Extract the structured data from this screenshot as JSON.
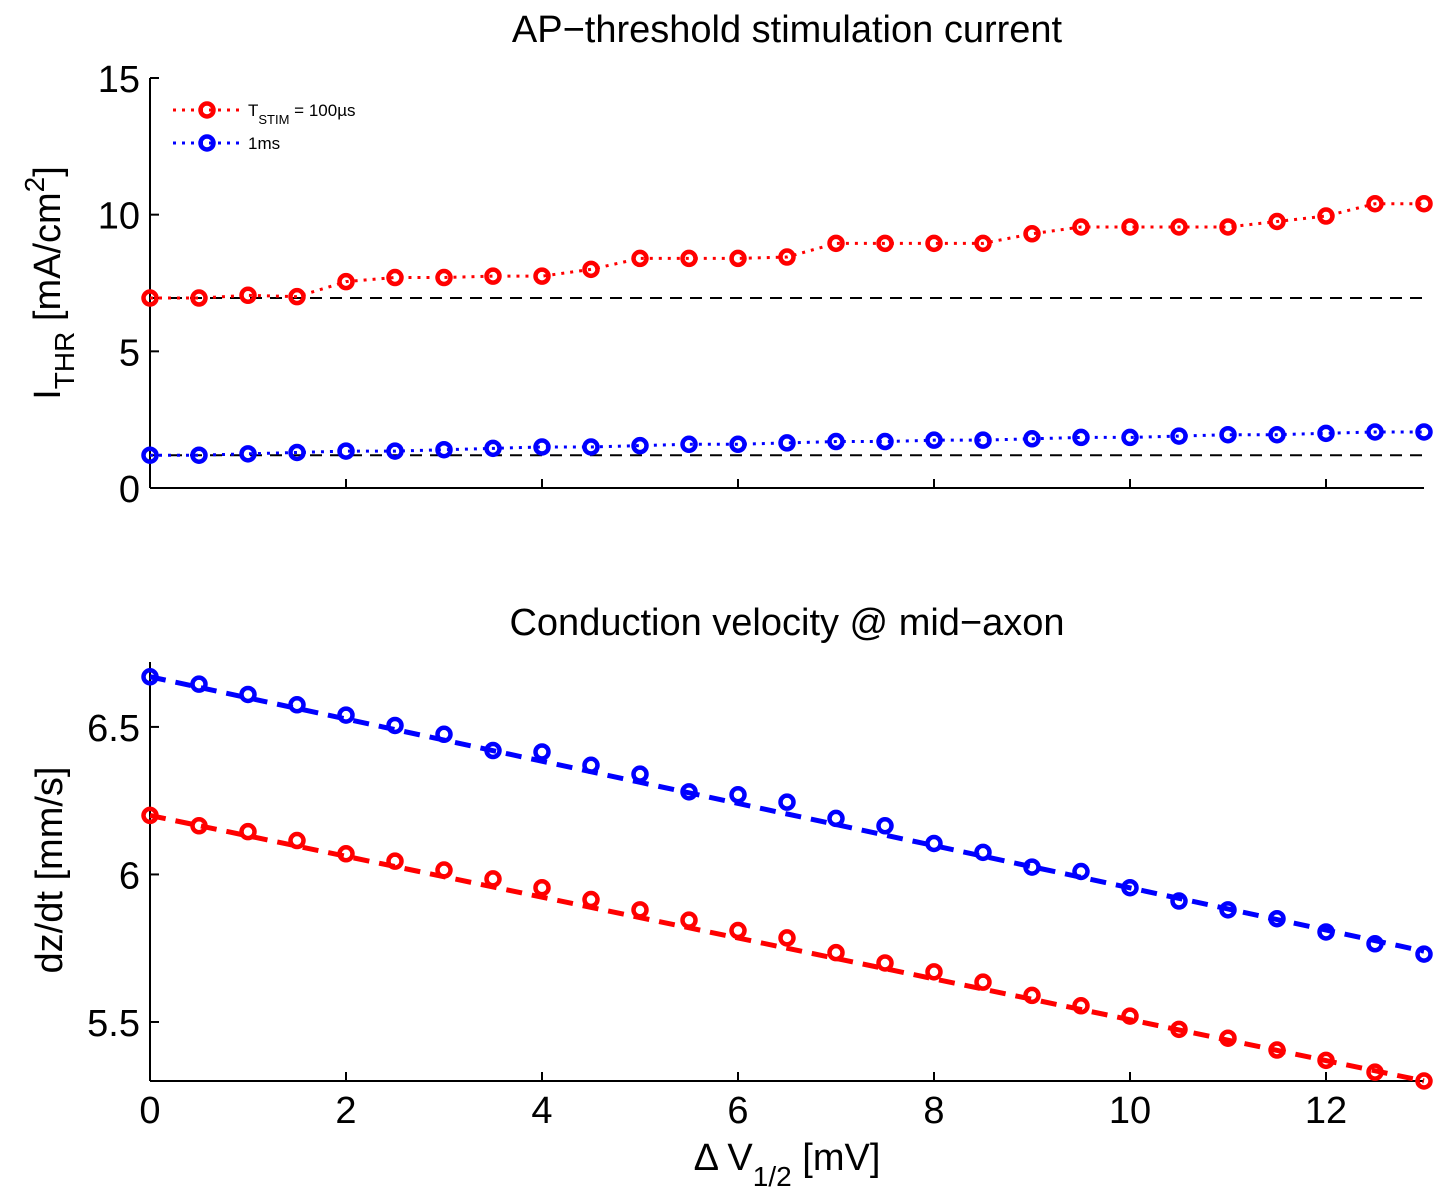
{
  "chart_data": [
    {
      "type": "line",
      "title": "AP−threshold stimulation current",
      "ylabel_main": "I",
      "ylabel_sub": "THR",
      "ylabel_unit_pre": " [mA/cm",
      "ylabel_unit_sup": "2",
      "ylabel_unit_post": "]",
      "xlim": [
        0,
        13
      ],
      "ylim": [
        0,
        15
      ],
      "yticks": [
        "0",
        "5",
        "10",
        "15"
      ],
      "yticks_values": [
        0,
        5,
        10,
        15
      ],
      "xticks_values": [
        0,
        2,
        4,
        6,
        8,
        10,
        12
      ],
      "grid": false,
      "legend_position": "top-left",
      "x": [
        0,
        0.5,
        1,
        1.5,
        2,
        2.5,
        3,
        3.5,
        4,
        4.5,
        5,
        5.5,
        6,
        6.5,
        7,
        7.5,
        8,
        8.5,
        9,
        9.5,
        10,
        10.5,
        11,
        11.5,
        12,
        12.5,
        13
      ],
      "series": [
        {
          "legend_main": "T",
          "legend_sub": "STIM",
          "legend_post": " = 100µs",
          "color": "#ff0000",
          "values": [
            6.95,
            6.95,
            7.05,
            7.0,
            7.55,
            7.7,
            7.7,
            7.75,
            7.75,
            8.0,
            8.4,
            8.4,
            8.4,
            8.45,
            8.95,
            8.95,
            8.95,
            8.95,
            9.3,
            9.55,
            9.55,
            9.55,
            9.55,
            9.75,
            9.95,
            10.4,
            10.4
          ],
          "baseline": 6.95
        },
        {
          "legend_main": "1ms",
          "color": "#0000ff",
          "values": [
            1.2,
            1.2,
            1.25,
            1.3,
            1.35,
            1.35,
            1.4,
            1.45,
            1.5,
            1.5,
            1.55,
            1.6,
            1.6,
            1.65,
            1.7,
            1.7,
            1.75,
            1.75,
            1.8,
            1.85,
            1.85,
            1.9,
            1.95,
            1.95,
            2.0,
            2.05,
            2.05
          ],
          "baseline": 1.2
        }
      ]
    },
    {
      "type": "scatter",
      "title": "Conduction velocity @ mid−axon",
      "ylabel": "dz/dt [mm/s]",
      "xlabel_main": "Δ V",
      "xlabel_sub": "1/2",
      "xlabel_unit": " [mV]",
      "xlim": [
        0,
        13
      ],
      "ylim": [
        5.3,
        6.72
      ],
      "yticks": [
        "5.5",
        "6",
        "6.5"
      ],
      "yticks_values": [
        5.5,
        6,
        6.5
      ],
      "xticks": [
        "0",
        "2",
        "4",
        "6",
        "8",
        "10",
        "12"
      ],
      "xticks_values": [
        0,
        2,
        4,
        6,
        8,
        10,
        12
      ],
      "grid": false,
      "x": [
        0,
        0.5,
        1,
        1.5,
        2,
        2.5,
        3,
        3.5,
        4,
        4.5,
        5,
        5.5,
        6,
        6.5,
        7,
        7.5,
        8,
        8.5,
        9,
        9.5,
        10,
        10.5,
        11,
        11.5,
        12,
        12.5,
        13
      ],
      "series": [
        {
          "color": "#0000ff",
          "values": [
            6.67,
            6.645,
            6.61,
            6.575,
            6.54,
            6.505,
            6.475,
            6.42,
            6.415,
            6.37,
            6.34,
            6.28,
            6.27,
            6.245,
            6.19,
            6.165,
            6.105,
            6.075,
            6.025,
            6.01,
            5.955,
            5.91,
            5.88,
            5.85,
            5.805,
            5.765,
            5.73
          ],
          "fit": [
            6.67,
            5.74
          ]
        },
        {
          "color": "#ff0000",
          "values": [
            6.2,
            6.165,
            6.145,
            6.115,
            6.07,
            6.045,
            6.015,
            5.985,
            5.955,
            5.915,
            5.88,
            5.845,
            5.81,
            5.785,
            5.735,
            5.7,
            5.67,
            5.635,
            5.59,
            5.555,
            5.52,
            5.475,
            5.445,
            5.405,
            5.37,
            5.33,
            5.3
          ],
          "fit": [
            6.2,
            5.3
          ]
        }
      ]
    }
  ]
}
